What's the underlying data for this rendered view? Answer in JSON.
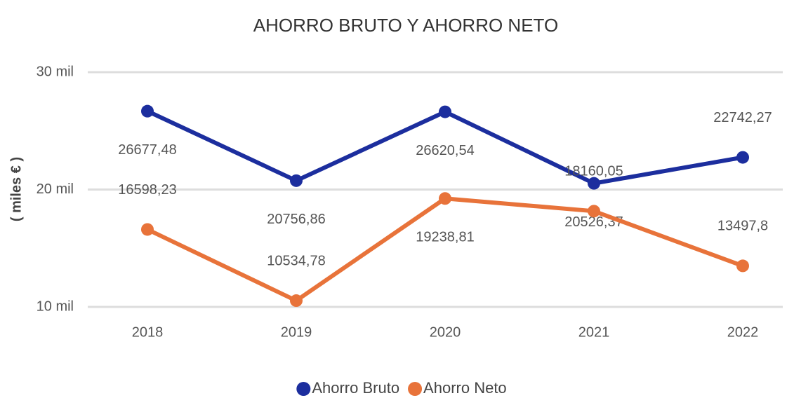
{
  "chart_data": {
    "type": "line",
    "title": "AHORRO BRUTO Y AHORRO NETO",
    "y_label": "( miles € )",
    "categories": [
      "2018",
      "2019",
      "2020",
      "2021",
      "2022"
    ],
    "series": [
      {
        "name": "Ahorro Bruto",
        "color": "#1c2e9e",
        "values": [
          26677.48,
          20756.86,
          26620.54,
          20526.37,
          22742.27
        ],
        "value_labels": [
          "26677,48",
          "20756,86",
          "26620,54",
          "20526,37",
          "22742,27"
        ]
      },
      {
        "name": "Ahorro Neto",
        "color": "#e8733a",
        "values": [
          16598.23,
          10534.78,
          19238.81,
          18160.05,
          13497.8
        ],
        "value_labels": [
          "16598,23",
          "10534,78",
          "19238,81",
          "18160,05",
          "13497,8"
        ]
      }
    ],
    "ylim": [
      10000,
      30000
    ],
    "yticks": [
      {
        "value": 10000,
        "label": "10 mil"
      },
      {
        "value": 20000,
        "label": "20 mil"
      },
      {
        "value": 30000,
        "label": "30 mil"
      }
    ],
    "grid": true,
    "legend": "bottom"
  }
}
